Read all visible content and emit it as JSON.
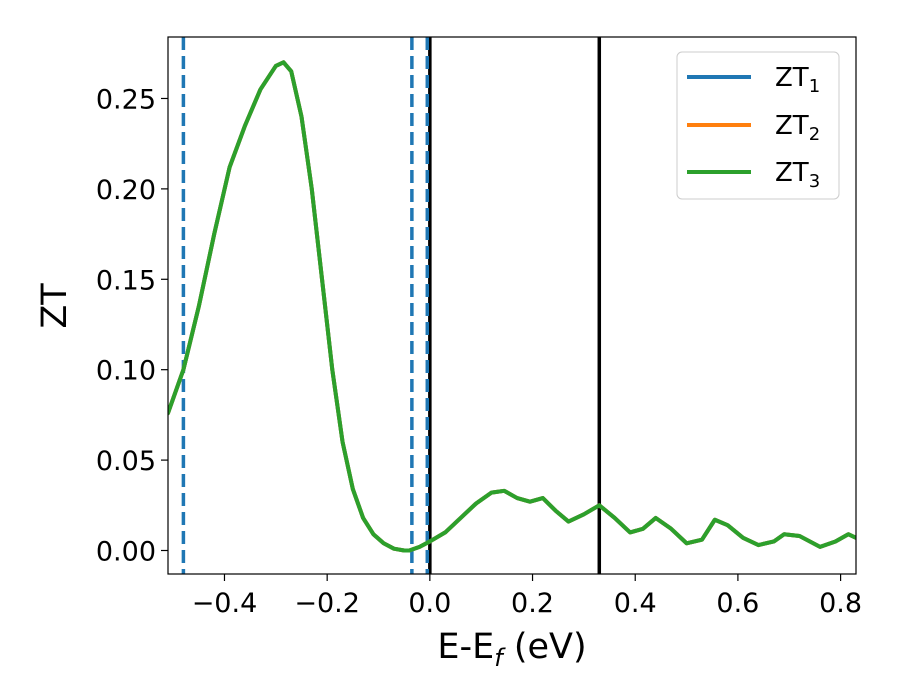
{
  "chart_data": {
    "type": "line",
    "xlabel": "E-E",
    "xlabel_sub": "f",
    "xlabel_unit": " (eV)",
    "ylabel": "ZT",
    "xlim": [
      -0.51,
      0.83
    ],
    "ylim": [
      -0.013,
      0.284
    ],
    "xticks": [
      -0.4,
      -0.2,
      0.0,
      0.2,
      0.4,
      0.6,
      0.8
    ],
    "xtick_labels": [
      "−0.4",
      "−0.2",
      "0.0",
      "0.2",
      "0.4",
      "0.6",
      "0.8"
    ],
    "yticks": [
      0.0,
      0.05,
      0.1,
      0.15,
      0.2,
      0.25
    ],
    "ytick_labels": [
      "0.00",
      "0.05",
      "0.10",
      "0.15",
      "0.20",
      "0.25"
    ],
    "grid": false,
    "legend_position": "top-right",
    "colors": {
      "ZT1": "#1f77b4",
      "ZT2": "#ff7f0e",
      "ZT3": "#2ca02c",
      "vline_solid": "#000000",
      "vline_dashed": "#1f77b4"
    },
    "series": [
      {
        "name": "ZT",
        "subscript": "1",
        "color": "#1f77b4",
        "x": [
          -0.51,
          -0.48,
          -0.45,
          -0.42,
          -0.39,
          -0.36,
          -0.33,
          -0.3,
          -0.285,
          -0.27,
          -0.25,
          -0.23,
          -0.21,
          -0.19,
          -0.17,
          -0.15,
          -0.13,
          -0.11,
          -0.09,
          -0.07,
          -0.05,
          -0.04,
          -0.02,
          0.0,
          0.03,
          0.06,
          0.09,
          0.12,
          0.145,
          0.17,
          0.195,
          0.22,
          0.245,
          0.27,
          0.3,
          0.33,
          0.36,
          0.39,
          0.415,
          0.44,
          0.47,
          0.5,
          0.53,
          0.555,
          0.58,
          0.61,
          0.64,
          0.67,
          0.69,
          0.72,
          0.76,
          0.79,
          0.815,
          0.83
        ],
        "y": [
          0.076,
          0.1,
          0.135,
          0.175,
          0.212,
          0.235,
          0.255,
          0.268,
          0.27,
          0.265,
          0.24,
          0.2,
          0.15,
          0.1,
          0.06,
          0.034,
          0.018,
          0.009,
          0.004,
          0.001,
          0.0,
          0.0,
          0.002,
          0.005,
          0.01,
          0.018,
          0.026,
          0.032,
          0.033,
          0.029,
          0.027,
          0.029,
          0.022,
          0.016,
          0.02,
          0.025,
          0.018,
          0.01,
          0.012,
          0.018,
          0.012,
          0.004,
          0.006,
          0.017,
          0.014,
          0.007,
          0.003,
          0.005,
          0.009,
          0.008,
          0.002,
          0.005,
          0.009,
          0.007
        ]
      },
      {
        "name": "ZT",
        "subscript": "2",
        "color": "#ff7f0e",
        "x": [
          -0.51,
          -0.48,
          -0.45,
          -0.42,
          -0.39,
          -0.36,
          -0.33,
          -0.3,
          -0.285,
          -0.27,
          -0.25,
          -0.23,
          -0.21,
          -0.19,
          -0.17,
          -0.15,
          -0.13,
          -0.11,
          -0.09,
          -0.07,
          -0.05,
          -0.04,
          -0.02,
          0.0,
          0.03,
          0.06,
          0.09,
          0.12,
          0.145,
          0.17,
          0.195,
          0.22,
          0.245,
          0.27,
          0.3,
          0.33,
          0.36,
          0.39,
          0.415,
          0.44,
          0.47,
          0.5,
          0.53,
          0.555,
          0.58,
          0.61,
          0.64,
          0.67,
          0.69,
          0.72,
          0.76,
          0.79,
          0.815,
          0.83
        ],
        "y": [
          0.076,
          0.1,
          0.135,
          0.175,
          0.212,
          0.235,
          0.255,
          0.268,
          0.27,
          0.265,
          0.24,
          0.2,
          0.15,
          0.1,
          0.06,
          0.034,
          0.018,
          0.009,
          0.004,
          0.001,
          0.0,
          0.0,
          0.002,
          0.005,
          0.01,
          0.018,
          0.026,
          0.032,
          0.033,
          0.029,
          0.027,
          0.029,
          0.022,
          0.016,
          0.02,
          0.025,
          0.018,
          0.01,
          0.012,
          0.018,
          0.012,
          0.004,
          0.006,
          0.017,
          0.014,
          0.007,
          0.003,
          0.005,
          0.009,
          0.008,
          0.002,
          0.005,
          0.009,
          0.007
        ]
      },
      {
        "name": "ZT",
        "subscript": "3",
        "color": "#2ca02c",
        "x": [
          -0.51,
          -0.48,
          -0.45,
          -0.42,
          -0.39,
          -0.36,
          -0.33,
          -0.3,
          -0.285,
          -0.27,
          -0.25,
          -0.23,
          -0.21,
          -0.19,
          -0.17,
          -0.15,
          -0.13,
          -0.11,
          -0.09,
          -0.07,
          -0.05,
          -0.04,
          -0.02,
          0.0,
          0.03,
          0.06,
          0.09,
          0.12,
          0.145,
          0.17,
          0.195,
          0.22,
          0.245,
          0.27,
          0.3,
          0.33,
          0.36,
          0.39,
          0.415,
          0.44,
          0.47,
          0.5,
          0.53,
          0.555,
          0.58,
          0.61,
          0.64,
          0.67,
          0.69,
          0.72,
          0.76,
          0.79,
          0.815,
          0.83
        ],
        "y": [
          0.076,
          0.1,
          0.135,
          0.175,
          0.212,
          0.235,
          0.255,
          0.268,
          0.27,
          0.265,
          0.24,
          0.2,
          0.15,
          0.1,
          0.06,
          0.034,
          0.018,
          0.009,
          0.004,
          0.001,
          0.0,
          0.0,
          0.002,
          0.005,
          0.01,
          0.018,
          0.026,
          0.032,
          0.033,
          0.029,
          0.027,
          0.029,
          0.022,
          0.016,
          0.02,
          0.025,
          0.018,
          0.01,
          0.012,
          0.018,
          0.012,
          0.004,
          0.006,
          0.017,
          0.014,
          0.007,
          0.003,
          0.005,
          0.009,
          0.008,
          0.002,
          0.005,
          0.009,
          0.007
        ]
      }
    ],
    "vlines": [
      {
        "x": -0.48,
        "style": "dashed",
        "color": "#1f77b4"
      },
      {
        "x": -0.035,
        "style": "dashed",
        "color": "#1f77b4"
      },
      {
        "x": 0.0,
        "style": "solid",
        "color": "#000000"
      },
      {
        "x": -0.005,
        "style": "dashed",
        "color": "#1f77b4"
      },
      {
        "x": 0.33,
        "style": "solid",
        "color": "#000000"
      }
    ]
  }
}
